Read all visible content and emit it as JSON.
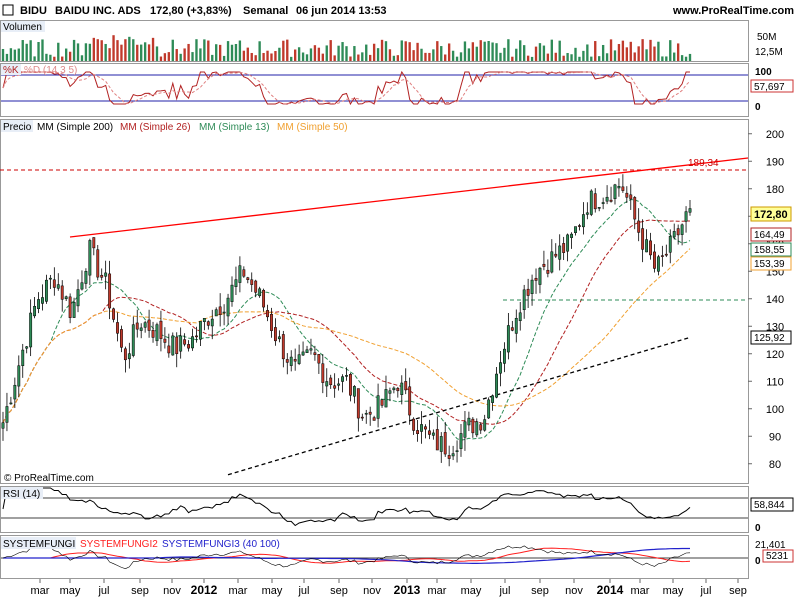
{
  "header": {
    "symbol": "BIDU",
    "name": "BAIDU INC. ADS",
    "price_change": "172,80 (+3,83%)",
    "period": "Semanal",
    "datetime": "06 jun 2014 13:53",
    "site": "www.ProRealTime.com"
  },
  "panels": {
    "volume": {
      "label": "Volumen",
      "ticks": [
        "50M"
      ],
      "current": "12,5M"
    },
    "stoch": {
      "label_k": "%K",
      "label_d": "%D (14 3 5)",
      "ticks": [
        "100",
        "0"
      ],
      "current": "57,697"
    },
    "price": {
      "legend": [
        "Precio",
        "MM (Simple 200)",
        "MM (Simple 26)",
        "MM (Simple 13)",
        "MM (Simple 50)"
      ],
      "copyright": "© ProRealTime.com",
      "resistance_label": "189,34",
      "value_tags": [
        "172,80",
        "164,49",
        "158,55",
        "153,39",
        "125,92"
      ]
    },
    "rsi": {
      "label": "RSI (14)",
      "ticks": [
        "0"
      ],
      "current": "58,844"
    },
    "systemfungi": {
      "labels": [
        "SYSTEMFUNGI",
        "SYSTEMFUNGI2",
        "SYSTEMFUNGI3 (40 100)"
      ],
      "ticks": [
        "0"
      ],
      "current1": "21,401",
      "current2": "5231"
    }
  },
  "x_axis": {
    "labels": [
      {
        "text": "mar",
        "bold": false
      },
      {
        "text": "may",
        "bold": false
      },
      {
        "text": "jul",
        "bold": false
      },
      {
        "text": "sep",
        "bold": false
      },
      {
        "text": "nov",
        "bold": false
      },
      {
        "text": "2012",
        "bold": true
      },
      {
        "text": "mar",
        "bold": false
      },
      {
        "text": "may",
        "bold": false
      },
      {
        "text": "jul",
        "bold": false
      },
      {
        "text": "sep",
        "bold": false
      },
      {
        "text": "nov",
        "bold": false
      },
      {
        "text": "2013",
        "bold": true
      },
      {
        "text": "mar",
        "bold": false
      },
      {
        "text": "may",
        "bold": false
      },
      {
        "text": "jul",
        "bold": false
      },
      {
        "text": "sep",
        "bold": false
      },
      {
        "text": "nov",
        "bold": false
      },
      {
        "text": "2014",
        "bold": true
      },
      {
        "text": "mar",
        "bold": false
      },
      {
        "text": "may",
        "bold": false
      },
      {
        "text": "jul",
        "bold": false
      },
      {
        "text": "sep",
        "bold": false
      }
    ]
  },
  "colors": {
    "up": "#2e8b57",
    "down": "#c0392b",
    "ma200": "#000000",
    "ma26": "#b22222",
    "ma13": "#2e8b57",
    "ma50": "#f0a030",
    "trend": "#ff0000",
    "support": "#2e8b57"
  },
  "chart_data": {
    "type": "candlestick",
    "title": "BIDU BAIDU INC. ADS",
    "period": "weekly",
    "y_ticks": [
      80,
      90,
      100,
      110,
      120,
      130,
      140,
      150,
      160,
      170,
      180,
      190,
      200
    ],
    "y_range": [
      73,
      205
    ],
    "last_close": 172.8,
    "resistance": 189.34,
    "support": 140,
    "ma_values": {
      "MM (Simple 13)": 158.55,
      "MM (Simple 26)": 164.49,
      "MM (Simple 50)": 153.39,
      "MM (Simple 200)": 125.92
    },
    "rsi_last": 58.844,
    "stoch_last": 57.697,
    "volume_last": "12,5M",
    "price_path": [
      {
        "d": "2011-02",
        "close": 95
      },
      {
        "d": "2011-03",
        "close": 118
      },
      {
        "d": "2011-04",
        "close": 140
      },
      {
        "d": "2011-05",
        "close": 148
      },
      {
        "d": "2011-06",
        "close": 135
      },
      {
        "d": "2011-07",
        "close": 158
      },
      {
        "d": "2011-08",
        "close": 145
      },
      {
        "d": "2011-09",
        "close": 118
      },
      {
        "d": "2011-10",
        "close": 132
      },
      {
        "d": "2011-11",
        "close": 128
      },
      {
        "d": "2011-12",
        "close": 122
      },
      {
        "d": "2012-01",
        "close": 125
      },
      {
        "d": "2012-02",
        "close": 134
      },
      {
        "d": "2012-03",
        "close": 140
      },
      {
        "d": "2012-04",
        "close": 150
      },
      {
        "d": "2012-05",
        "close": 140
      },
      {
        "d": "2012-06",
        "close": 125
      },
      {
        "d": "2012-07",
        "close": 114
      },
      {
        "d": "2012-08",
        "close": 120
      },
      {
        "d": "2012-09",
        "close": 110
      },
      {
        "d": "2012-10",
        "close": 110
      },
      {
        "d": "2012-11",
        "close": 97
      },
      {
        "d": "2012-12",
        "close": 101
      },
      {
        "d": "2013-01",
        "close": 110
      },
      {
        "d": "2013-02",
        "close": 95
      },
      {
        "d": "2013-03",
        "close": 88
      },
      {
        "d": "2013-04",
        "close": 86
      },
      {
        "d": "2013-05",
        "close": 93
      },
      {
        "d": "2013-06",
        "close": 97
      },
      {
        "d": "2013-07",
        "close": 120
      },
      {
        "d": "2013-08",
        "close": 138
      },
      {
        "d": "2013-09",
        "close": 150
      },
      {
        "d": "2013-10",
        "close": 155
      },
      {
        "d": "2013-11",
        "close": 160
      },
      {
        "d": "2013-12",
        "close": 175
      },
      {
        "d": "2014-01",
        "close": 178
      },
      {
        "d": "2014-02",
        "close": 182
      },
      {
        "d": "2014-03",
        "close": 165
      },
      {
        "d": "2014-04",
        "close": 150
      },
      {
        "d": "2014-05",
        "close": 160
      },
      {
        "d": "2014-06",
        "close": 172.8
      }
    ]
  }
}
